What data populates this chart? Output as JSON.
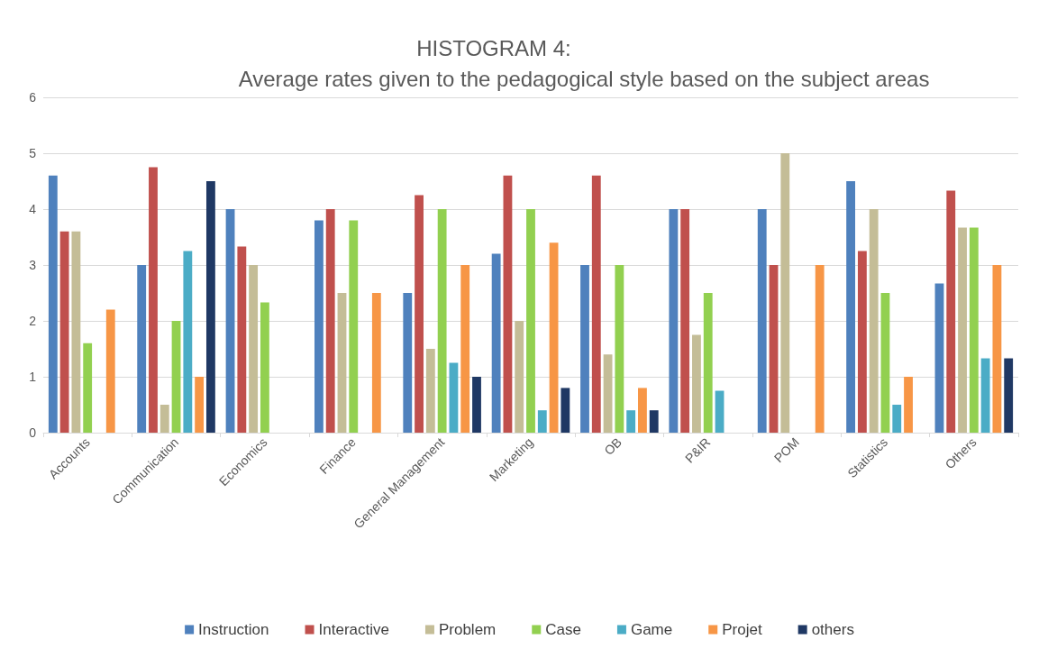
{
  "chart_data": {
    "type": "bar",
    "title": "HISTOGRAM 4:",
    "subtitle": "Average rates given to the pedagogical style based on the subject areas",
    "categories": [
      "Accounts",
      "Communication",
      "Economics",
      "Finance",
      "General Management",
      "Marketing",
      "OB",
      "P&IR",
      "POM",
      "Statistics",
      "Others"
    ],
    "series": [
      {
        "name": "Instruction",
        "color": "#4f81bd",
        "values": [
          4.6,
          3.0,
          4.0,
          3.8,
          2.5,
          3.2,
          3.0,
          4.0,
          4.0,
          4.5,
          2.67
        ]
      },
      {
        "name": "Interactive",
        "color": "#c0504d",
        "values": [
          3.6,
          4.75,
          3.33,
          4.0,
          4.25,
          4.6,
          4.6,
          4.0,
          3.0,
          3.25,
          4.33
        ]
      },
      {
        "name": "Problem",
        "color": "#c4bd97",
        "values": [
          3.6,
          0.5,
          3.0,
          2.5,
          1.5,
          2.0,
          1.4,
          1.75,
          5.0,
          4.0,
          3.67
        ]
      },
      {
        "name": "Case",
        "color": "#92d050",
        "values": [
          1.6,
          2.0,
          2.33,
          3.8,
          4.0,
          4.0,
          3.0,
          2.5,
          null,
          2.5,
          3.67
        ]
      },
      {
        "name": "Game",
        "color": "#4bacc6",
        "values": [
          null,
          3.25,
          null,
          null,
          1.25,
          0.4,
          0.4,
          0.75,
          null,
          0.5,
          1.33
        ]
      },
      {
        "name": "Projet",
        "color": "#f79646",
        "values": [
          2.2,
          1.0,
          null,
          2.5,
          3.0,
          3.4,
          0.8,
          null,
          3.0,
          1.0,
          3.0
        ]
      },
      {
        "name": "others",
        "color": "#1f3864",
        "values": [
          null,
          4.5,
          null,
          null,
          1.0,
          0.8,
          0.4,
          null,
          null,
          null,
          1.33
        ]
      }
    ],
    "ylim": [
      0,
      6
    ],
    "yticks": [
      0,
      1,
      2,
      3,
      4,
      5,
      6
    ],
    "grid": "y",
    "legend": "bottom"
  }
}
